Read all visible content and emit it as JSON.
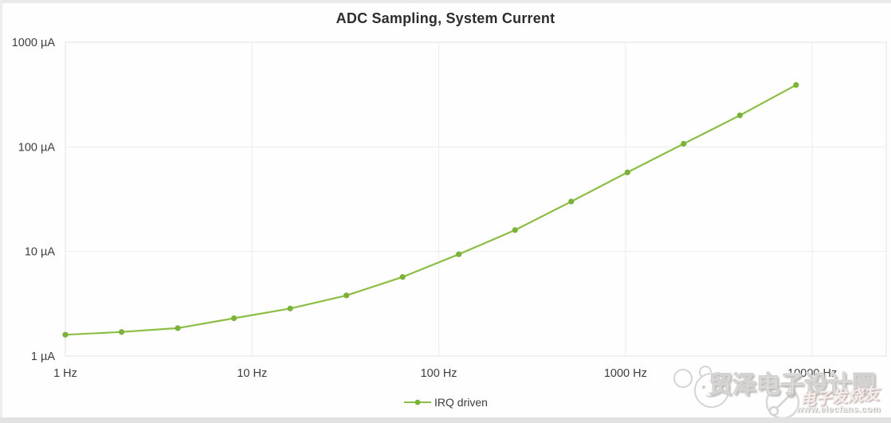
{
  "chart_data": {
    "type": "line",
    "title": "ADC Sampling, System Current",
    "x_scale": "log",
    "y_scale": "log",
    "xlim": [
      1,
      24900
    ],
    "ylim": [
      1,
      1000
    ],
    "grid": true,
    "legend_position": "bottom",
    "x_ticks": [
      {
        "value": 1,
        "label": "1 Hz"
      },
      {
        "value": 10,
        "label": "10 Hz"
      },
      {
        "value": 100,
        "label": "100 Hz"
      },
      {
        "value": 1000,
        "label": "1000 Hz"
      },
      {
        "value": 10000,
        "label": "10000 Hz"
      }
    ],
    "y_ticks": [
      {
        "value": 1,
        "label": "1 µA"
      },
      {
        "value": 10,
        "label": "10 µA"
      },
      {
        "value": 100,
        "label": "100 µA"
      },
      {
        "value": 1000,
        "label": "1000 µA"
      }
    ],
    "series": [
      {
        "name": "IRQ driven",
        "x": [
          1,
          2,
          4,
          8,
          16,
          32,
          64,
          128,
          256,
          512,
          1024,
          2048,
          4096,
          8192
        ],
        "y": [
          1.6,
          1.7,
          1.85,
          2.3,
          2.85,
          3.8,
          5.7,
          9.4,
          16,
          30,
          57,
          107,
          200,
          390
        ]
      }
    ]
  },
  "colors": {
    "series_line": "#8cbe45",
    "series_marker": "#7cb23a",
    "grid_line": "#ececec",
    "plot_border": "#e3e3e3",
    "tick_text": "#3d3d3d",
    "title_text": "#2d2d2d"
  },
  "legend": {
    "label": "IRQ driven"
  },
  "watermark": {
    "brand": "贸泽电子设计圈",
    "stamp": "电子发烧友",
    "url": "www.elecfans.com"
  }
}
